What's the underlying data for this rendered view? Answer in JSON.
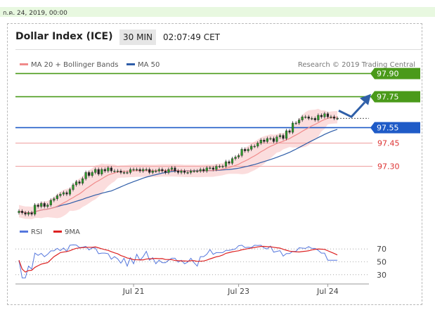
{
  "header": {
    "date": "ก.ค. 24, 2019, 00:00",
    "title": "Dollar Index (ICE)",
    "timeframe": "30 MIN",
    "time": "02:07:49 CET"
  },
  "legend": {
    "ma20": "MA 20 + Bollinger Bands",
    "ma50": "MA 50",
    "credit": "Research © 2019 Trading Central"
  },
  "colors": {
    "ma20": "#f08a8a",
    "ma50": "#2e5da8",
    "bands": "#fbd9d9",
    "green": "#4a9a1a",
    "blue_level": "#1f5bc7",
    "red_level": "#dd3333",
    "candle_up": "#2b9a2b",
    "candle_down": "#222222"
  },
  "chart_data": [
    {
      "type": "candlestick",
      "title": "Dollar Index (ICE)",
      "timeframe": "30 MIN",
      "x_ticks": [
        "Jul 21",
        "Jul 23",
        "Jul 24"
      ],
      "ylim": [
        96.93,
        97.93
      ],
      "levels": [
        {
          "value": 97.9,
          "label": "97.90",
          "style": "green"
        },
        {
          "value": 97.75,
          "label": "97.75",
          "style": "green"
        },
        {
          "value": 97.55,
          "label": "97.55",
          "style": "blue"
        },
        {
          "value": 97.45,
          "label": "97.45",
          "style": "red"
        },
        {
          "value": 97.3,
          "label": "97.30",
          "style": "red"
        }
      ],
      "close": [
        97.01,
        97.0,
        96.99,
        97.0,
        96.99,
        97.05,
        97.04,
        97.06,
        97.04,
        97.05,
        97.08,
        97.09,
        97.11,
        97.12,
        97.13,
        97.12,
        97.15,
        97.18,
        97.2,
        97.19,
        97.22,
        97.26,
        97.24,
        97.26,
        97.28,
        97.25,
        97.28,
        97.27,
        97.29,
        97.27,
        97.27,
        97.27,
        97.26,
        97.26,
        97.26,
        97.28,
        97.28,
        97.28,
        97.27,
        97.28,
        97.28,
        97.26,
        97.27,
        97.27,
        97.28,
        97.27,
        97.26,
        97.28,
        97.29,
        97.27,
        97.26,
        97.27,
        97.26,
        97.26,
        97.27,
        97.27,
        97.27,
        97.28,
        97.27,
        97.29,
        97.29,
        97.28,
        97.3,
        97.3,
        97.3,
        97.33,
        97.32,
        97.35,
        97.36,
        97.37,
        97.41,
        97.4,
        97.41,
        97.43,
        97.43,
        97.45,
        97.47,
        97.46,
        97.48,
        97.48,
        97.46,
        97.49,
        97.5,
        97.48,
        97.53,
        97.52,
        97.58,
        97.58,
        97.6,
        97.62,
        97.62,
        97.61,
        97.61,
        97.6,
        97.63,
        97.62,
        97.64,
        97.62,
        97.62,
        97.61,
        97.61
      ],
      "projection": [
        97.66,
        97.62,
        97.75
      ],
      "rsi": {
        "ylim": [
          20,
          80
        ],
        "ticks": [
          70,
          50,
          30
        ],
        "series_labels": [
          "RSI",
          "9MA"
        ]
      }
    }
  ]
}
